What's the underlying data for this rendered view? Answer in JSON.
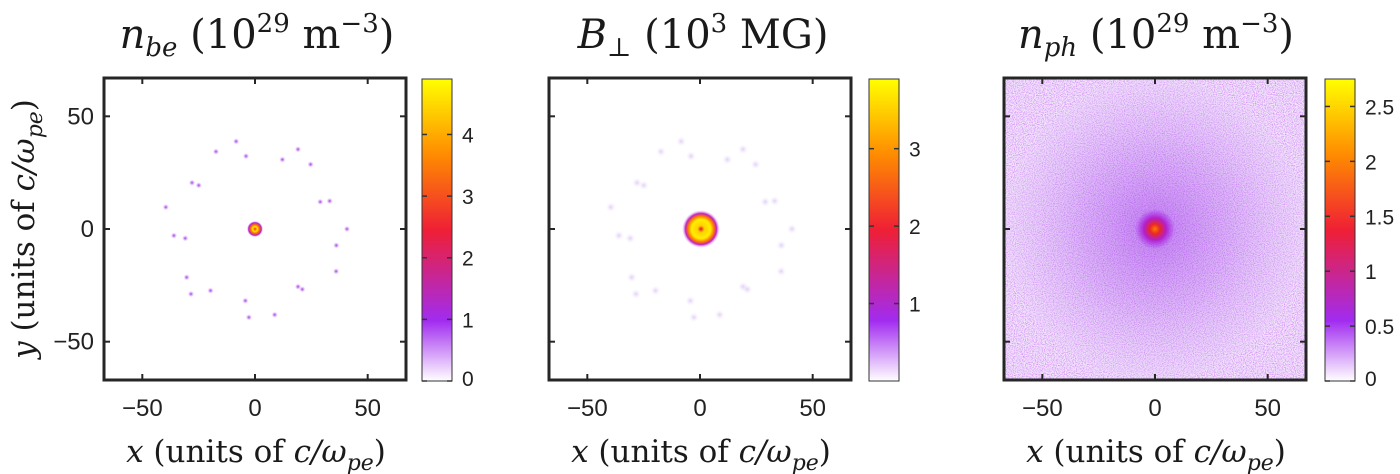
{
  "y_axis_label": "y (units of c/ω_pe)",
  "chart_data": [
    {
      "type": "heatmap",
      "title": "n_be (10^29 m^-3)",
      "xlabel": "x (units of c/ω_pe)",
      "ylabel": "y (units of c/ω_pe)",
      "xlim": [
        -67,
        67
      ],
      "ylim": [
        -67,
        67
      ],
      "xticks": [
        -50,
        0,
        50
      ],
      "yticks": [
        50,
        0,
        -50
      ],
      "colorbar": {
        "min": 0,
        "max": 4.9,
        "ticks": [
          0,
          1,
          2,
          3,
          4
        ]
      },
      "grid": false,
      "colormap": [
        "#ffffff",
        "#a12cf0",
        "#ef1f35",
        "#ff8c00",
        "#ffff00"
      ],
      "features": {
        "central_peak": {
          "x": 0,
          "y": 0,
          "value": 4.9,
          "radius": 2.5
        },
        "ring": {
          "radius": 40,
          "spot_value": 1.2
        }
      }
    },
    {
      "type": "heatmap",
      "title": "B_⊥ (10^3 MG)",
      "xlabel": "x (units of c/ω_pe)",
      "xlim": [
        -67,
        67
      ],
      "ylim": [
        -67,
        67
      ],
      "xticks": [
        -50,
        0,
        50
      ],
      "colorbar": {
        "min": 0,
        "max": 3.9,
        "ticks": [
          1,
          2,
          3
        ]
      },
      "grid": false,
      "colormap": [
        "#ffffff",
        "#a12cf0",
        "#ef1f35",
        "#ff8c00",
        "#ffff00"
      ],
      "features": {
        "central_peak": {
          "x": 0,
          "y": 0,
          "value": 3.9,
          "radius": 7
        },
        "ring": {
          "radius": 40,
          "spot_value": 0.2
        }
      }
    },
    {
      "type": "heatmap",
      "title": "n_ph (10^29 m^-3)",
      "xlabel": "x (units of c/ω_pe)",
      "xlim": [
        -67,
        67
      ],
      "ylim": [
        -67,
        67
      ],
      "xticks": [
        -50,
        0,
        50
      ],
      "colorbar": {
        "min": 0,
        "max": 2.75,
        "ticks": [
          0,
          0.5,
          1,
          1.5,
          2,
          2.5
        ]
      },
      "grid": false,
      "colormap": [
        "#ffffff",
        "#a12cf0",
        "#ef1f35",
        "#ff8c00",
        "#ffff00"
      ],
      "features": {
        "central_peak": {
          "x": 0,
          "y": 0,
          "value": 1.6,
          "radius": 3
        },
        "background_level": 0.4
      }
    }
  ]
}
